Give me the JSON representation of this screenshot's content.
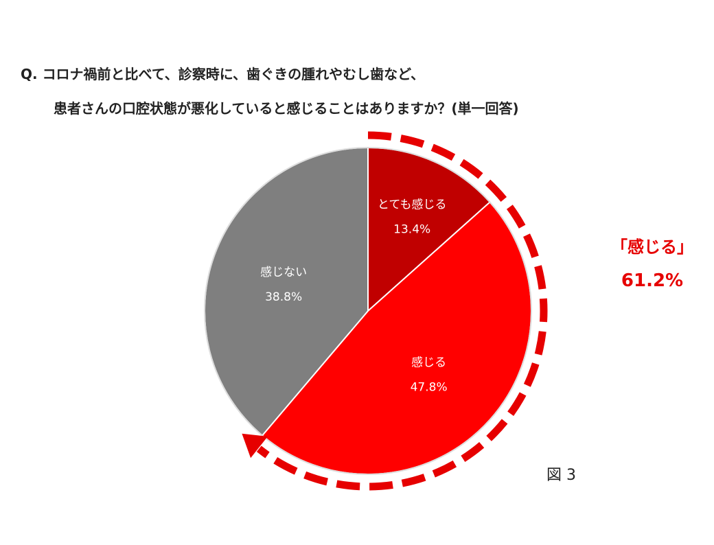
{
  "title": {
    "line1": "Q.  コロナ禍前と比べて、診察時に、歯ぐきの腫れやむし歯など、",
    "line2": "患者さんの口腔状態が悪化していると感じることはありますか？(単一回答)"
  },
  "callout": {
    "label": "「感じる」",
    "value": "61.2%"
  },
  "figure_label": "図 3",
  "colors": {
    "very": "#c00000",
    "feel": "#ff0000",
    "not": "#7f7f7f",
    "accent": "#e60000"
  },
  "chart_data": {
    "type": "pie",
    "start_angle_deg": 0,
    "direction": "clockwise",
    "slices": [
      {
        "label": "とても感じる",
        "value": 13.4,
        "value_label": "13.4%",
        "color": "#c00000"
      },
      {
        "label": "感じる",
        "value": 47.8,
        "value_label": "47.8%",
        "color": "#ff0000"
      },
      {
        "label": "感じない",
        "value": 38.8,
        "value_label": "38.8%",
        "color": "#7f7f7f"
      }
    ]
  }
}
